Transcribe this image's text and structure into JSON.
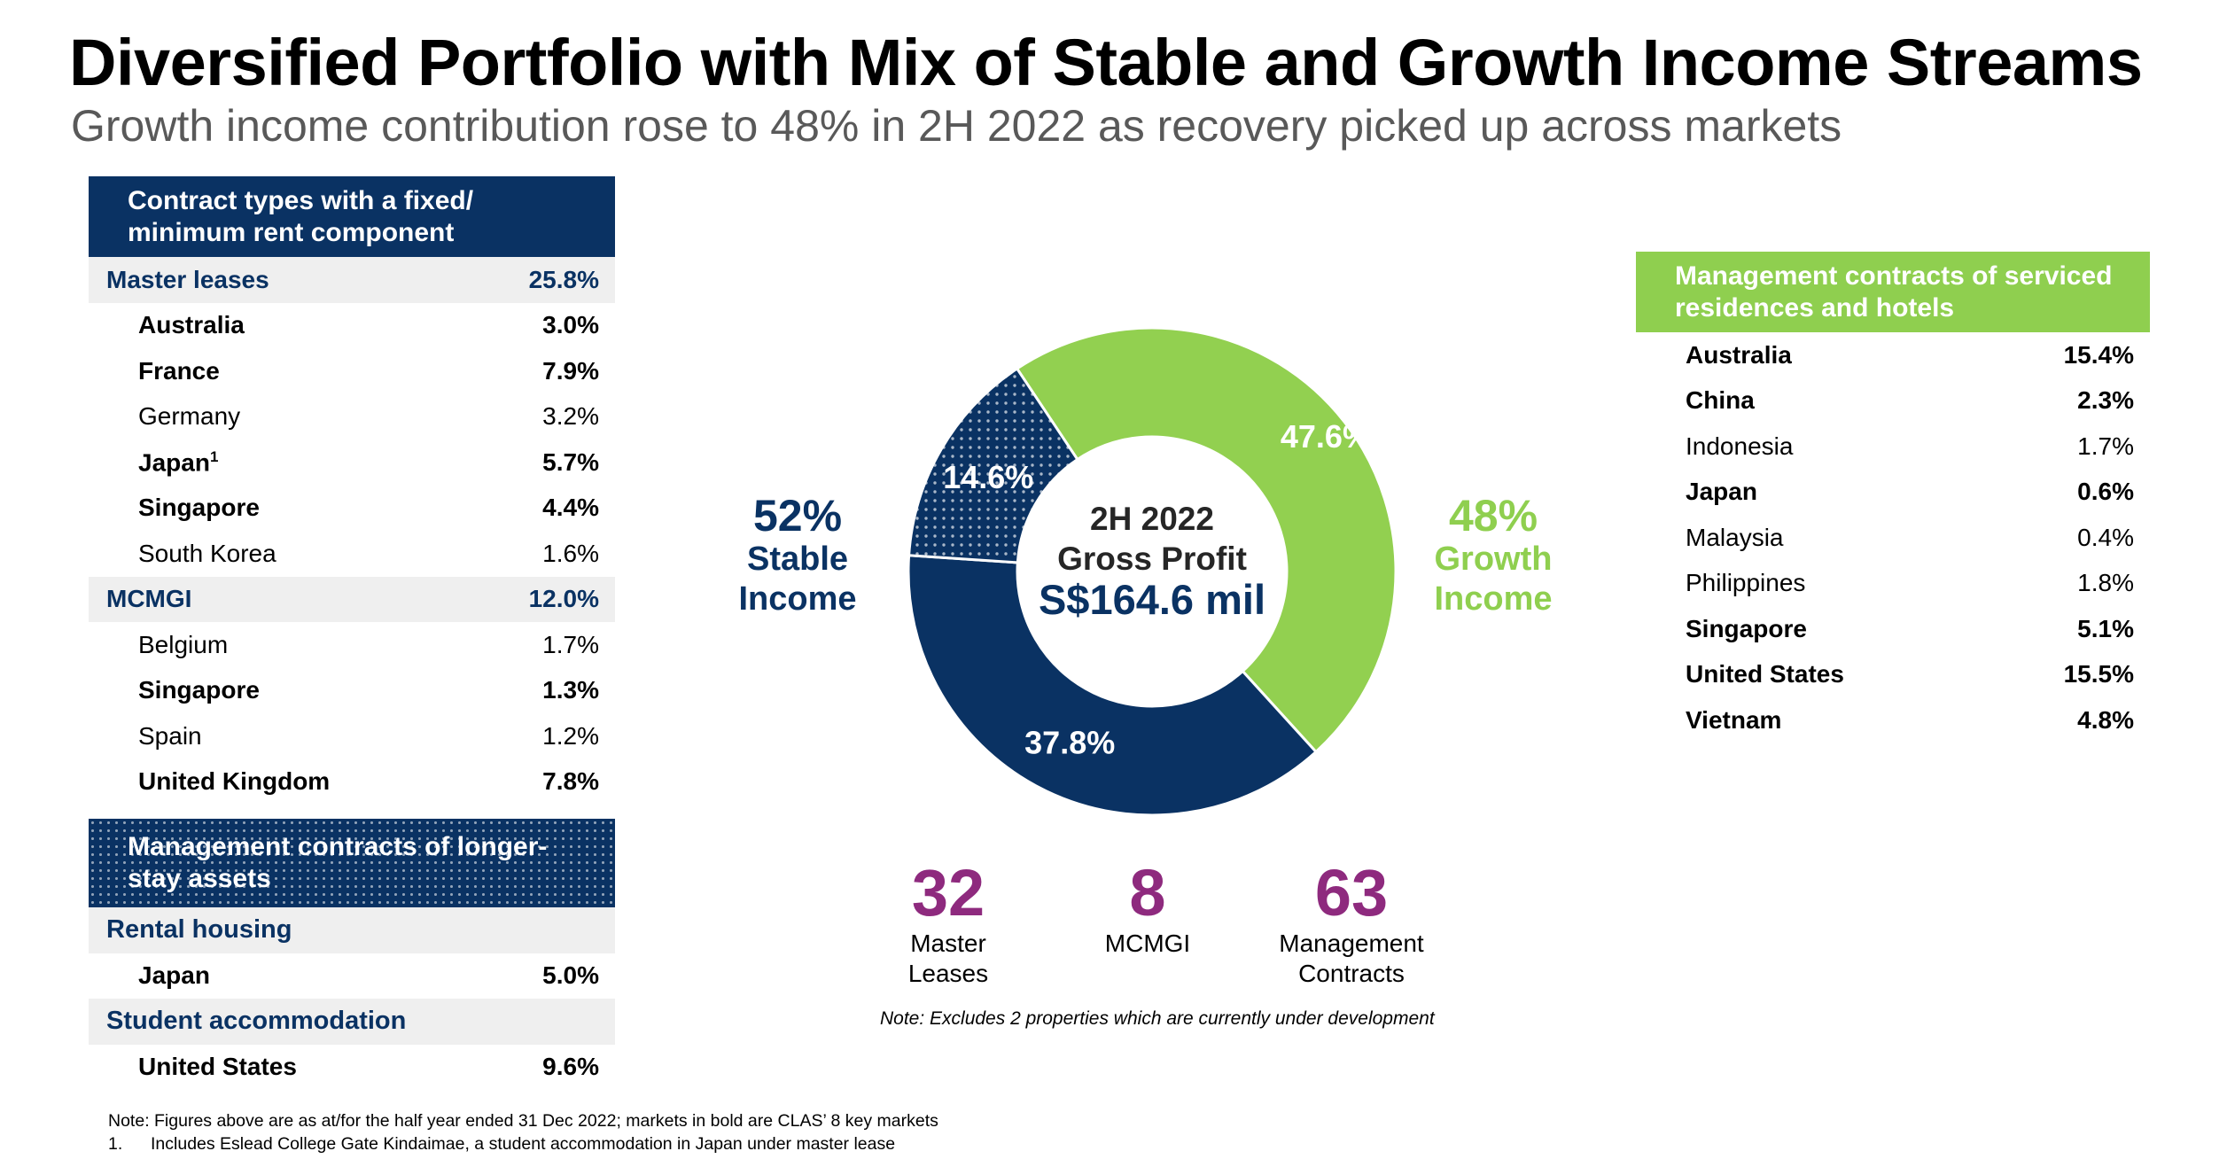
{
  "header": {
    "title": "Diversified Portfolio with Mix of Stable and Growth Income Streams",
    "subtitle": "Growth income contribution rose to 48% in 2H 2022 as recovery picked up across markets"
  },
  "left_table": {
    "header": "Contract types with a fixed/ minimum rent component",
    "groups": [
      {
        "label": "Master leases",
        "value": "25.8%",
        "rows": [
          {
            "label": "Australia",
            "value": "3.0%",
            "bold": true
          },
          {
            "label": "France",
            "value": "7.9%",
            "bold": true
          },
          {
            "label": "Germany",
            "value": "3.2%",
            "bold": false
          },
          {
            "label": "Japan",
            "value": "5.7%",
            "bold": true,
            "sup": "1"
          },
          {
            "label": "Singapore",
            "value": "4.4%",
            "bold": true
          },
          {
            "label": "South Korea",
            "value": "1.6%",
            "bold": false
          }
        ]
      },
      {
        "label": "MCMGI",
        "value": "12.0%",
        "rows": [
          {
            "label": "Belgium",
            "value": "1.7%",
            "bold": false
          },
          {
            "label": "Singapore",
            "value": "1.3%",
            "bold": true
          },
          {
            "label": "Spain",
            "value": "1.2%",
            "bold": false
          },
          {
            "label": "United Kingdom",
            "value": "7.8%",
            "bold": true
          }
        ]
      }
    ]
  },
  "longer_stay": {
    "header": "Management contracts of longer-stay assets",
    "sections": [
      {
        "label": "Rental housing",
        "rows": [
          {
            "label": "Japan",
            "value": "5.0%"
          }
        ]
      },
      {
        "label": "Student accommodation",
        "rows": [
          {
            "label": "United States",
            "value": "9.6%"
          }
        ]
      }
    ]
  },
  "right_table": {
    "header": "Management contracts of serviced residences and hotels",
    "rows": [
      {
        "label": "Australia",
        "value": "15.4%",
        "bold": true
      },
      {
        "label": "China",
        "value": "2.3%",
        "bold": true
      },
      {
        "label": "Indonesia",
        "value": "1.7%",
        "bold": false
      },
      {
        "label": "Japan",
        "value": "0.6%",
        "bold": true
      },
      {
        "label": "Malaysia",
        "value": "0.4%",
        "bold": false
      },
      {
        "label": "Philippines",
        "value": "1.8%",
        "bold": false
      },
      {
        "label": "Singapore",
        "value": "5.1%",
        "bold": true
      },
      {
        "label": "United States",
        "value": "15.5%",
        "bold": true
      },
      {
        "label": "Vietnam",
        "value": "4.8%",
        "bold": true
      }
    ]
  },
  "chart_data": {
    "type": "pie",
    "center_line1": "2H 2022",
    "center_line2": "Gross Profit",
    "center_value": "S$164.6 mil",
    "slices": [
      {
        "label": "47.6%",
        "value": 47.6,
        "color": "#92d050",
        "pattern": false
      },
      {
        "label": "37.8%",
        "value": 37.8,
        "color": "#0a3263",
        "pattern": false
      },
      {
        "label": "14.6%",
        "value": 14.6,
        "color": "#0a3263",
        "pattern": true
      }
    ]
  },
  "stable": {
    "percent": "52%",
    "line1": "Stable",
    "line2": "Income",
    "color": "#0a3263"
  },
  "growth": {
    "percent": "48%",
    "line1": "Growth",
    "line2": "Income",
    "color": "#92d050"
  },
  "counts": [
    {
      "num": "32",
      "line1": "Master",
      "line2": "Leases"
    },
    {
      "num": "8",
      "line1": "MCMGI",
      "line2": ""
    },
    {
      "num": "63",
      "line1": "Management",
      "line2": "Contracts"
    }
  ],
  "note_mid": "Note: Excludes 2 properties which are currently under development",
  "footnotes": {
    "note": "Note: Figures above are as at/for the half year ended 31 Dec 2022; markets in bold are CLAS’ 8 key markets",
    "fn1_num": "1.",
    "fn1_text": "Includes Eslead College Gate Kindaimae, a student accommodation in Japan under master lease"
  }
}
